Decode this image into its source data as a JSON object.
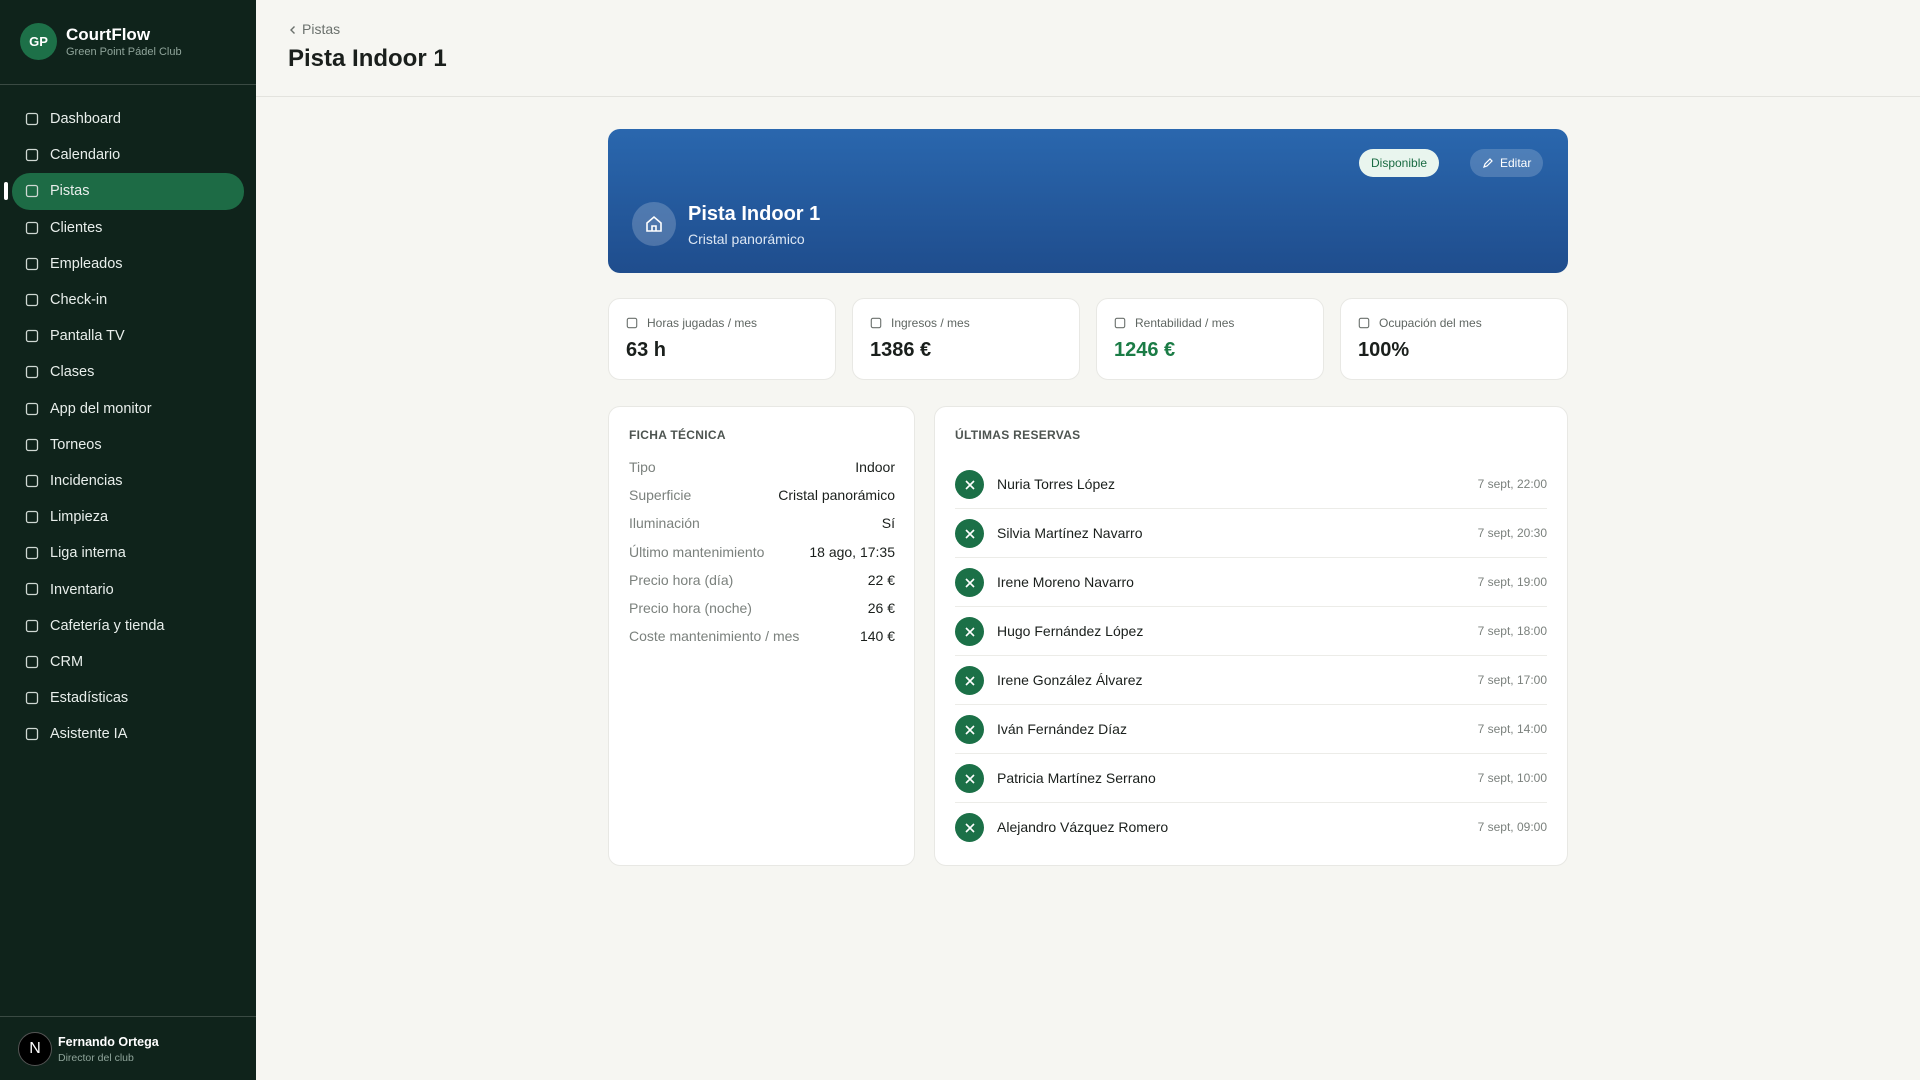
{
  "sidebar": {
    "logo": "GP",
    "brand": "CourtFlow",
    "club": "Green Point Pádel Club",
    "nav": [
      "Dashboard",
      "Calendario",
      "Pistas",
      "Clientes",
      "Empleados",
      "Check-in",
      "Pantalla TV",
      "Clases",
      "App del monitor",
      "Torneos",
      "Incidencias",
      "Limpieza",
      "Liga interna",
      "Inventario",
      "Cafetería y tienda",
      "CRM",
      "Estadísticas",
      "Asistente IA"
    ],
    "active": 2,
    "user": {
      "initial": "N",
      "name": "Fernando Ortega",
      "role": "Director del club"
    }
  },
  "header": {
    "breadcrumb": "Pistas",
    "title": "Pista Indoor 1"
  },
  "banner": {
    "title": "Pista Indoor 1",
    "subtitle": "Cristal panorámico",
    "status": "Disponible",
    "edit": "Editar"
  },
  "stats": [
    {
      "label": "Horas jugadas / mes",
      "value": "63 h"
    },
    {
      "label": "Ingresos / mes",
      "value": "1386 €"
    },
    {
      "label": "Rentabilidad / mes",
      "value": "1246 €"
    },
    {
      "label": "Ocupación del mes",
      "value": "100%"
    }
  ],
  "ficha": {
    "title": "FICHA TÉCNICA",
    "rows": [
      [
        "Tipo",
        "Indoor"
      ],
      [
        "Superficie",
        "Cristal panorámico"
      ],
      [
        "Iluminación",
        "Sí"
      ],
      [
        "Último mantenimiento",
        "18 ago, 17:35"
      ],
      [
        "Precio hora (día)",
        "22 €"
      ],
      [
        "Precio hora (noche)",
        "26 €"
      ],
      [
        "Coste mantenimiento / mes",
        "140 €"
      ]
    ]
  },
  "reservas": {
    "title": "ÚLTIMAS RESERVAS",
    "items": [
      {
        "name": "Nuria Torres López",
        "time": "7 sept, 22:00"
      },
      {
        "name": "Silvia Martínez Navarro",
        "time": "7 sept, 20:30"
      },
      {
        "name": "Irene Moreno Navarro",
        "time": "7 sept, 19:00"
      },
      {
        "name": "Hugo Fernández López",
        "time": "7 sept, 18:00"
      },
      {
        "name": "Irene González Álvarez",
        "time": "7 sept, 17:00"
      },
      {
        "name": "Iván Fernández Díaz",
        "time": "7 sept, 14:00"
      },
      {
        "name": "Patricia Martínez Serrano",
        "time": "7 sept, 10:00"
      },
      {
        "name": "Alejandro Vázquez Romero",
        "time": "7 sept, 09:00"
      }
    ]
  }
}
